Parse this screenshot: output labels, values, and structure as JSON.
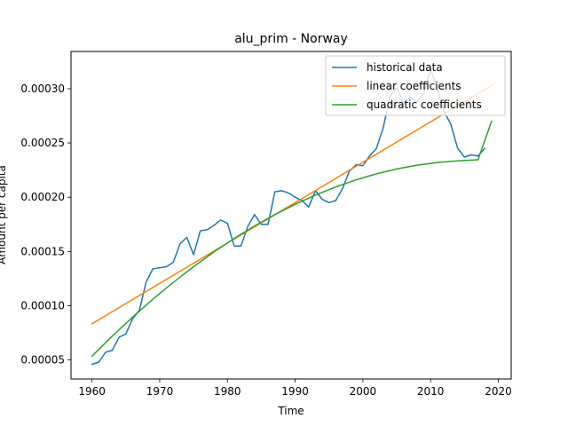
{
  "chart_data": {
    "type": "line",
    "title": "alu_prim - Norway",
    "xlabel": "Time",
    "ylabel": "Amount per capita",
    "xlim": [
      1956.9,
      2021.9
    ],
    "ylim": [
      3.25e-05,
      0.0003343
    ],
    "x_ticks": [
      1960,
      1970,
      1980,
      1990,
      2000,
      2010,
      2020
    ],
    "x_tick_labels": [
      "1960",
      "1970",
      "1980",
      "1990",
      "2000",
      "2010",
      "2020"
    ],
    "y_ticks": [
      5e-05,
      0.0001,
      0.00015,
      0.0002,
      0.00025,
      0.0003
    ],
    "y_tick_labels": [
      "0.00005",
      "0.00010",
      "0.00015",
      "0.00020",
      "0.00025",
      "0.00030"
    ],
    "grid": false,
    "legend_position": "top-right",
    "series": [
      {
        "name": "historical data",
        "color": "#1f77b4",
        "x": [
          1960,
          1961,
          1962,
          1963,
          1964,
          1965,
          1966,
          1967,
          1968,
          1969,
          1970,
          1971,
          1972,
          1973,
          1974,
          1975,
          1976,
          1977,
          1978,
          1979,
          1980,
          1981,
          1982,
          1983,
          1984,
          1985,
          1986,
          1987,
          1988,
          1989,
          1990,
          1991,
          1992,
          1993,
          1994,
          1995,
          1996,
          1997,
          1998,
          1999,
          2000,
          2001,
          2002,
          2003,
          2004,
          2005,
          2006,
          2007,
          2008,
          2009,
          2010,
          2011,
          2012,
          2013,
          2014,
          2015,
          2016,
          2017,
          2018
        ],
        "y": [
          4.6e-05,
          4.8e-05,
          5.7e-05,
          5.9e-05,
          7.1e-05,
          7.4e-05,
          8.8e-05,
          9.6e-05,
          0.000122,
          0.000134,
          0.000135,
          0.000136,
          0.00014,
          0.000157,
          0.000163,
          0.000147,
          0.000169,
          0.00017,
          0.000174,
          0.000179,
          0.000176,
          0.000155,
          0.000155,
          0.000173,
          0.000184,
          0.000175,
          0.000175,
          0.000205,
          0.000206,
          0.000204,
          0.0002,
          0.000197,
          0.000191,
          0.000206,
          0.000198,
          0.000195,
          0.000197,
          0.000208,
          0.000224,
          0.00023,
          0.000229,
          0.000238,
          0.000245,
          0.000264,
          0.000293,
          0.000301,
          0.000287,
          0.000292,
          0.000288,
          0.000296,
          0.000318,
          0.0003,
          0.000279,
          0.000267,
          0.000245,
          0.000237,
          0.000239,
          0.000238,
          0.000245
        ]
      },
      {
        "name": "linear coefficients",
        "color": "#ff7f0e",
        "x": [
          1960,
          2019
        ],
        "y": [
          8.34e-05,
          0.000303
        ]
      },
      {
        "name": "quadratic coefficients",
        "color": "#2ca02c",
        "x": [
          1960,
          1963,
          1966,
          1969,
          1972,
          1975,
          1978,
          1981,
          1984,
          1987,
          1990,
          1993,
          1996,
          1999,
          2002,
          2005,
          2008,
          2011,
          2014,
          2017,
          2019
        ],
        "y": [
          5.35e-05,
          7.2e-05,
          8.95e-05,
          0.000106,
          0.0001215,
          0.000136,
          0.0001495,
          0.000162,
          0.0001735,
          0.000184,
          0.0001935,
          0.000202,
          0.0002095,
          0.000216,
          0.0002215,
          0.000226,
          0.0002295,
          0.000232,
          0.0002335,
          0.0002345,
          0.00027
        ]
      }
    ]
  }
}
